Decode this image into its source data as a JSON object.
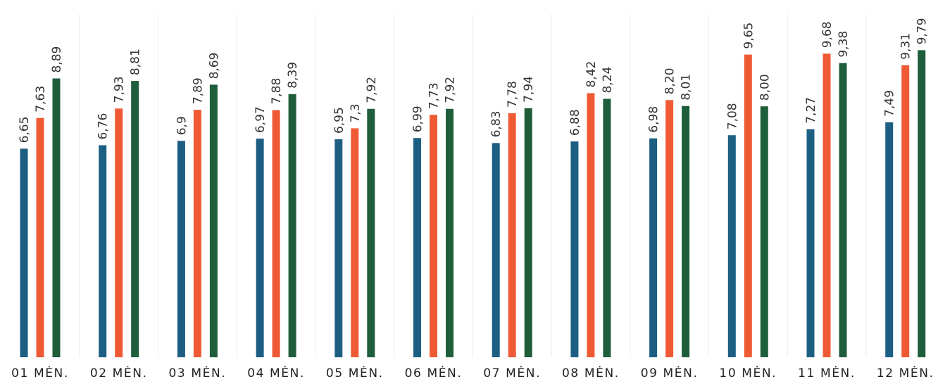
{
  "chart_data": {
    "type": "bar",
    "categories": [
      "01 MĖN.",
      "02 MĖN.",
      "03 MĖN.",
      "04 MĖN.",
      "05 MĖN.",
      "06 MĖN.",
      "07 MĖN.",
      "08 MĖN.",
      "09 MĖN.",
      "10 MĖN.",
      "11 MĖN.",
      "12 MĖN."
    ],
    "series": [
      {
        "color": "#1c5f83",
        "values": [
          6.65,
          6.76,
          6.9,
          6.97,
          6.95,
          6.99,
          6.83,
          6.88,
          6.98,
          7.08,
          7.27,
          7.49
        ],
        "labels": [
          "6,65",
          "6,76",
          "6,9",
          "6,97",
          "6,95",
          "6,99",
          "6,83",
          "6,88",
          "6,98",
          "7,08",
          "7,27",
          "7,49"
        ]
      },
      {
        "color": "#ef5a35",
        "values": [
          7.63,
          7.93,
          7.89,
          7.88,
          7.3,
          7.73,
          7.78,
          8.42,
          8.2,
          9.65,
          9.68,
          9.31
        ],
        "labels": [
          "7,63",
          "7,93",
          "7,89",
          "7,88",
          "7,3",
          "7,73",
          "7,78",
          "8,42",
          "8,20",
          "9,65",
          "9,68",
          "9,31"
        ]
      },
      {
        "color": "#1f5e3b",
        "values": [
          8.89,
          8.81,
          8.69,
          8.39,
          7.92,
          7.92,
          7.94,
          8.24,
          8.01,
          8.0,
          9.38,
          9.79
        ],
        "labels": [
          "8,89",
          "8,81",
          "8,69",
          "8,39",
          "7,92",
          "7,92",
          "7,94",
          "8,24",
          "8,01",
          "8,00",
          "9,38",
          "9,79"
        ]
      }
    ],
    "ylim": [
      0,
      9.79
    ],
    "grid": true,
    "legend": "none"
  }
}
